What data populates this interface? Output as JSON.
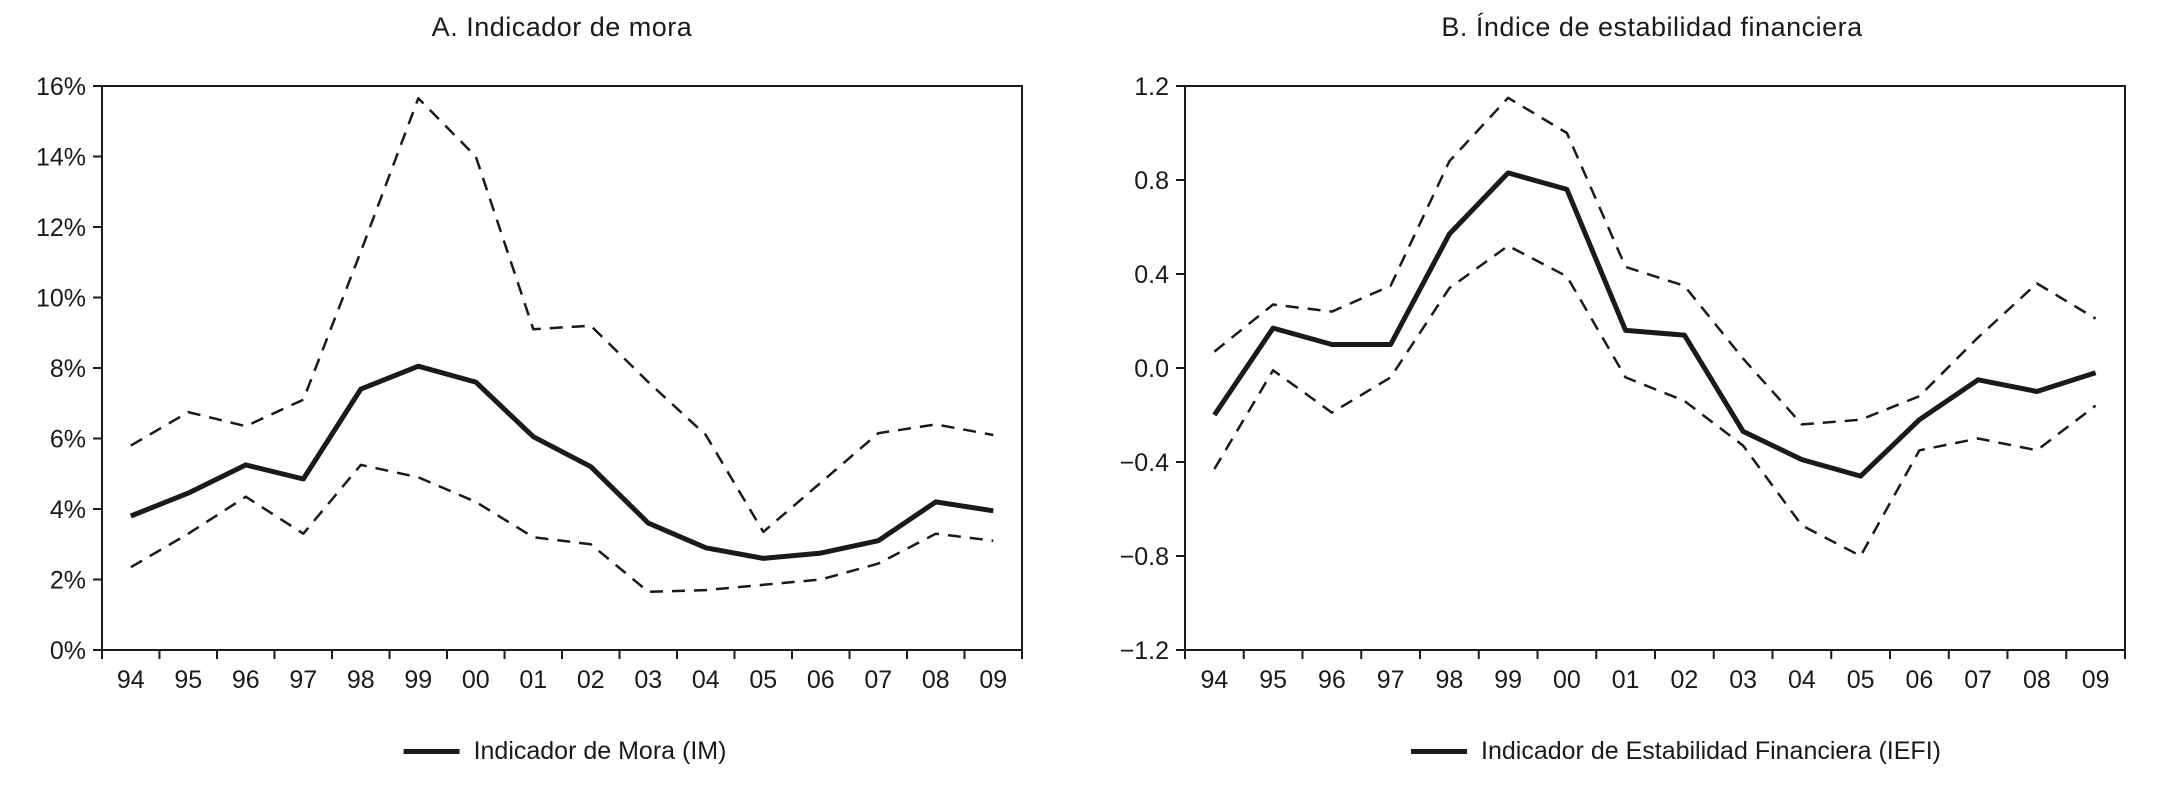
{
  "figure": {
    "background": "#ffffff",
    "ink": "#1a1a1a"
  },
  "chart_data": [
    {
      "id": "indicador-de-mora",
      "type": "line",
      "title": "A. Indicador de mora",
      "categories": [
        "94",
        "95",
        "96",
        "97",
        "98",
        "99",
        "00",
        "01",
        "02",
        "03",
        "04",
        "05",
        "06",
        "07",
        "08",
        "09"
      ],
      "ylim": [
        0,
        16
      ],
      "grid": false,
      "legend_position": "bottom",
      "y_ticks": [
        {
          "value": 16,
          "label": "16%"
        },
        {
          "value": 14,
          "label": "14%"
        },
        {
          "value": 12,
          "label": "12%"
        },
        {
          "value": 10,
          "label": "10%"
        },
        {
          "value": 8,
          "label": "8%"
        },
        {
          "value": 6,
          "label": "6%"
        },
        {
          "value": 4,
          "label": "4%"
        },
        {
          "value": 2,
          "label": "2%"
        },
        {
          "value": 0,
          "label": "0%"
        }
      ],
      "series": [
        {
          "id": "im",
          "style": "solid",
          "values": [
            3.8,
            4.45,
            5.25,
            4.85,
            7.4,
            8.05,
            7.6,
            6.05,
            5.2,
            3.6,
            2.9,
            2.6,
            2.75,
            3.1,
            4.2,
            3.95
          ]
        },
        {
          "id": "upper-band",
          "style": "dashed",
          "values": [
            5.8,
            6.75,
            6.35,
            7.1,
            11.3,
            15.65,
            14.0,
            9.1,
            9.2,
            7.6,
            6.1,
            3.35,
            4.75,
            6.15,
            6.4,
            6.1
          ]
        },
        {
          "id": "lower-band",
          "style": "dashed",
          "values": [
            2.35,
            3.3,
            4.35,
            3.3,
            5.25,
            4.9,
            4.2,
            3.2,
            3.0,
            1.65,
            1.7,
            1.85,
            2.0,
            2.45,
            3.3,
            3.1
          ]
        }
      ],
      "legend": {
        "label": "Indicador de Mora (IM)"
      }
    },
    {
      "id": "indice-de-estabilidad-financiera",
      "type": "line",
      "title": "B. Índice de estabilidad financiera",
      "categories": [
        "94",
        "95",
        "96",
        "97",
        "98",
        "99",
        "00",
        "01",
        "02",
        "03",
        "04",
        "05",
        "06",
        "07",
        "08",
        "09"
      ],
      "ylim": [
        -1.2,
        1.2
      ],
      "grid": false,
      "legend_position": "bottom",
      "y_ticks": [
        {
          "value": 1.2,
          "label": "1.2"
        },
        {
          "value": 0.8,
          "label": "0.8"
        },
        {
          "value": 0.4,
          "label": "0.4"
        },
        {
          "value": 0.0,
          "label": "0.0"
        },
        {
          "value": -0.4,
          "label": "−0.4"
        },
        {
          "value": -0.8,
          "label": "−0.8"
        },
        {
          "value": -1.2,
          "label": "−1.2"
        }
      ],
      "series": [
        {
          "id": "iefi",
          "style": "solid",
          "values": [
            -0.2,
            0.17,
            0.1,
            0.1,
            0.57,
            0.83,
            0.76,
            0.16,
            0.14,
            -0.27,
            -0.39,
            -0.46,
            -0.22,
            -0.05,
            -0.1,
            -0.02
          ]
        },
        {
          "id": "upper-band",
          "style": "dashed",
          "values": [
            0.07,
            0.27,
            0.24,
            0.35,
            0.88,
            1.15,
            1.0,
            0.43,
            0.35,
            0.04,
            -0.24,
            -0.22,
            -0.12,
            0.13,
            0.36,
            0.21
          ]
        },
        {
          "id": "lower-band",
          "style": "dashed",
          "values": [
            -0.43,
            -0.01,
            -0.19,
            -0.04,
            0.34,
            0.52,
            0.39,
            -0.04,
            -0.14,
            -0.33,
            -0.67,
            -0.8,
            -0.35,
            -0.3,
            -0.35,
            -0.16
          ]
        }
      ],
      "legend": {
        "label": "Indicador de Estabilidad Financiera (IEFI)"
      }
    }
  ]
}
